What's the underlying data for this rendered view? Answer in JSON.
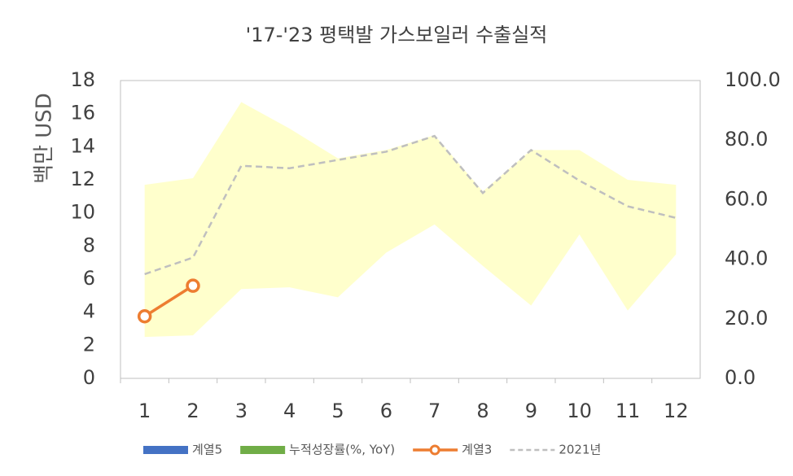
{
  "chart_data": {
    "type": "line",
    "title": "'17-'23 평택발 가스보일러 수출실적",
    "y_label": "백만 USD",
    "categories": [
      "1",
      "2",
      "3",
      "4",
      "5",
      "6",
      "7",
      "8",
      "9",
      "10",
      "11",
      "12"
    ],
    "ylim": [
      0,
      18
    ],
    "yticks": [
      0,
      2,
      4,
      6,
      8,
      10,
      12,
      14,
      16,
      18
    ],
    "y2lim": [
      0,
      100
    ],
    "y2ticks": [
      {
        "value": 0,
        "label": "0.0"
      },
      {
        "value": 20,
        "label": "20.0"
      },
      {
        "value": 40,
        "label": "40.0"
      },
      {
        "value": 60,
        "label": "60.0"
      },
      {
        "value": 80,
        "label": "80.0"
      },
      {
        "value": 100,
        "label": "100.0"
      }
    ],
    "band": {
      "color": "#ffffcc",
      "lower": [
        2.5,
        2.6,
        5.4,
        5.5,
        4.9,
        7.6,
        9.3,
        6.8,
        4.4,
        8.7,
        4.1,
        7.5
      ],
      "upper": [
        11.7,
        12.1,
        16.7,
        15.1,
        13.3,
        13.8,
        14.7,
        11.3,
        13.8,
        13.8,
        12.0,
        11.7
      ]
    },
    "legend_only": [
      {
        "name": "계열5",
        "color": "#4472c4"
      },
      {
        "name": "누적성장률(%, YoY)",
        "color": "#70ad47"
      }
    ],
    "series": [
      {
        "name": "계열3",
        "color": "#ed7d31",
        "style": "marker",
        "values": [
          3.75,
          5.6,
          null,
          null,
          null,
          null,
          null,
          null,
          null,
          null,
          null,
          null
        ]
      },
      {
        "name": "2021년",
        "color": "#bfbfbf",
        "style": "dashed",
        "values": [
          6.3,
          7.3,
          12.85,
          12.7,
          13.2,
          13.7,
          14.65,
          11.2,
          13.8,
          11.95,
          10.4,
          9.7
        ]
      }
    ]
  }
}
